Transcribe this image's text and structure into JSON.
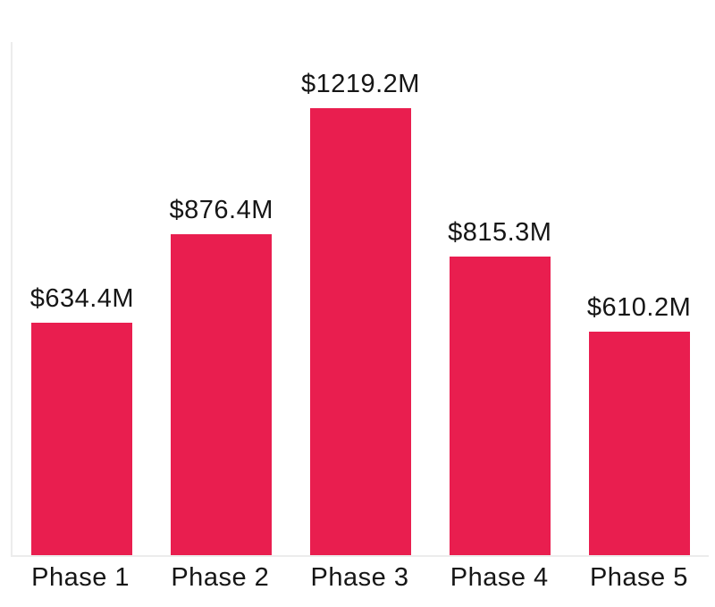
{
  "chart_data": {
    "type": "bar",
    "categories": [
      "Phase 1",
      "Phase 2",
      "Phase 3",
      "Phase 4",
      "Phase 5"
    ],
    "values": [
      634.4,
      876.4,
      1219.2,
      815.3,
      610.2
    ],
    "value_labels": [
      "$634.4M",
      "$876.4M",
      "$1219.2M",
      "$815.3M",
      "$610.2M"
    ],
    "title": "",
    "xlabel": "",
    "ylabel": "",
    "ylim": [
      0,
      1405
    ],
    "grid": false,
    "legend": false,
    "colors": {
      "bar": "#e91e4f",
      "axis_line": "#ececec",
      "text": "#161616",
      "background": "#ffffff"
    }
  }
}
